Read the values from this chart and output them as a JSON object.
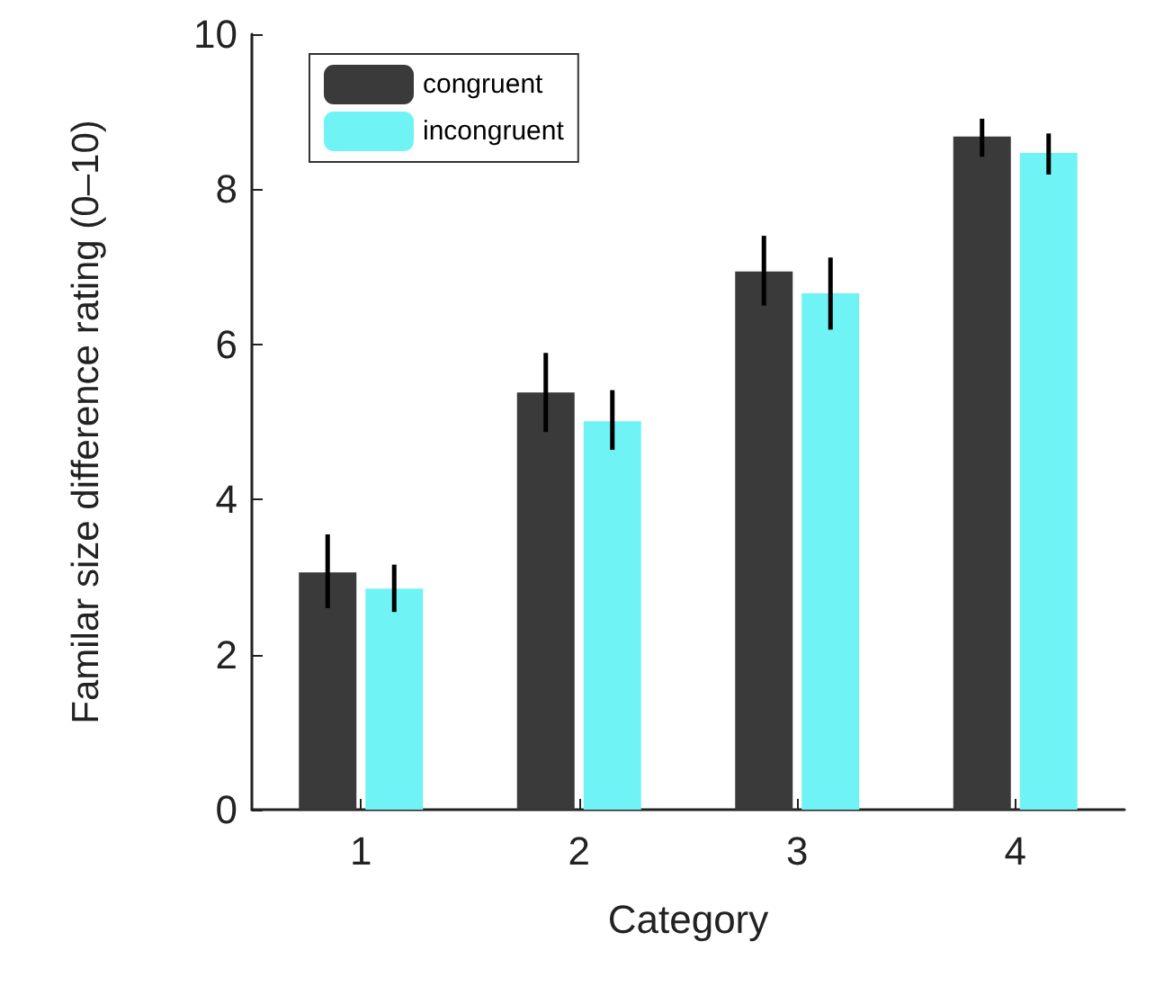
{
  "chart_data": {
    "type": "bar",
    "xlabel": "Category",
    "ylabel": "Familar size difference rating (0–10)",
    "categories": [
      "1",
      "2",
      "3",
      "4"
    ],
    "series": [
      {
        "name": "congruent",
        "color": "#3a3a3a",
        "values": [
          3.06,
          5.38,
          6.94,
          8.68
        ],
        "errors": [
          [
            2.6,
            3.55
          ],
          [
            4.87,
            5.89
          ],
          [
            6.5,
            7.4
          ],
          [
            8.42,
            8.91
          ]
        ]
      },
      {
        "name": "incongruent",
        "color": "#70f3f5",
        "values": [
          2.85,
          5.01,
          6.66,
          8.47
        ],
        "errors": [
          [
            2.55,
            3.16
          ],
          [
            4.64,
            5.41
          ],
          [
            6.19,
            7.12
          ],
          [
            8.19,
            8.72
          ]
        ]
      }
    ],
    "ylim": [
      0,
      10
    ],
    "yticks": [
      0,
      2,
      4,
      6,
      8,
      10
    ],
    "grid": false,
    "legend": "top left"
  }
}
